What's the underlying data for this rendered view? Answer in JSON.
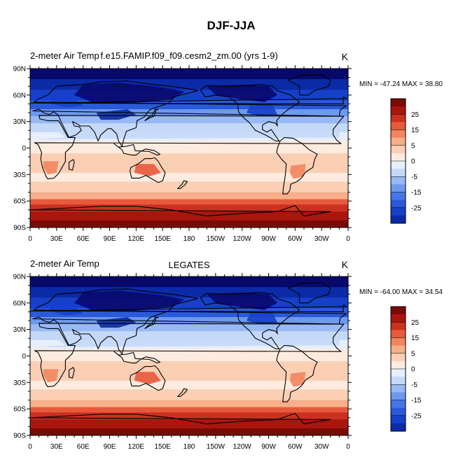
{
  "chart_data": {
    "type": "contour-map",
    "title": "DJF-JJA",
    "colormap": [
      "#08086b",
      "#0b2aa6",
      "#1640c8",
      "#2a5ad9",
      "#4476e5",
      "#6d99ee",
      "#98b9f3",
      "#c4d8f8",
      "#e6effb",
      "#fdebe0",
      "#fbcfb4",
      "#f7ae8b",
      "#f2855e",
      "#e55a3b",
      "#cc3021",
      "#a8160e",
      "#7a0a05"
    ],
    "panels": [
      {
        "left_title": "2-meter Air Temp",
        "center_title": "f.e15.FAMIP.f09_f09.cesm2_zm.00 (yrs 1-9)",
        "units": "K",
        "stats": "MIN = -47.24 MAX =  38.80",
        "min": -47.24,
        "max": 38.8,
        "lat_labels": [
          "90N",
          "60N",
          "30N",
          "0",
          "30S",
          "60S",
          "90S"
        ],
        "lon_labels": [
          "0",
          "30E",
          "60E",
          "90E",
          "120E",
          "150E",
          "180",
          "150W",
          "120W",
          "90W",
          "60W",
          "30W",
          "0"
        ],
        "colorbar_labels": [
          "25",
          "15",
          "5",
          "0",
          "-5",
          "-15",
          "-25"
        ]
      },
      {
        "left_title": "2-meter Air Temp",
        "center_title": "LEGATES",
        "units": "K",
        "stats": "MIN = -64.00 MAX =  34.54",
        "min": -64.0,
        "max": 34.54,
        "lat_labels": [
          "90N",
          "60N",
          "30N",
          "0",
          "30S",
          "60S",
          "90S"
        ],
        "lon_labels": [
          "0",
          "30E",
          "60E",
          "90E",
          "120E",
          "150E",
          "180",
          "150W",
          "120W",
          "90W",
          "60W",
          "30W",
          "0"
        ],
        "colorbar_labels": [
          "25",
          "15",
          "5",
          "0",
          "-5",
          "-15",
          "-25"
        ]
      }
    ],
    "colorbar_levels": [
      -30,
      -25,
      -20,
      -15,
      -10,
      -5,
      -2,
      0,
      2,
      5,
      10,
      15,
      20,
      25,
      30
    ]
  }
}
